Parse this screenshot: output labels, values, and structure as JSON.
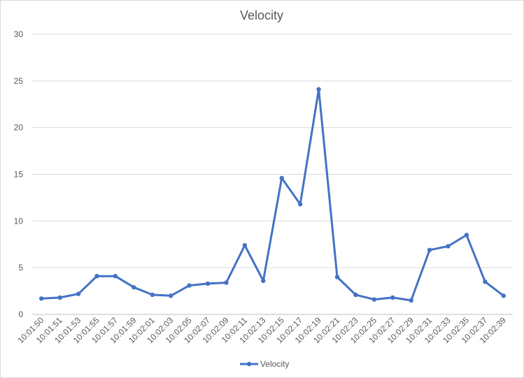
{
  "chart_data": {
    "type": "line",
    "title": "Velocity",
    "xlabel": "",
    "ylabel": "",
    "ylim": [
      0,
      30
    ],
    "yticks": [
      0,
      5,
      10,
      15,
      20,
      25,
      30
    ],
    "grid": true,
    "legend_position": "bottom",
    "categories": [
      "10:01:50",
      "10:01:51",
      "10:01:53",
      "10:01:55",
      "10:01:57",
      "10:01:59",
      "10:02:01",
      "10:02:03",
      "10:02:05",
      "10:02:07",
      "10:02:09",
      "10:02:11",
      "10:02:13",
      "10:02:15",
      "10:02:17",
      "10:02:19",
      "10:02:21",
      "10:02:23",
      "10:02:25",
      "10:02:27",
      "10:02:29",
      "10:02:31",
      "10:02:33",
      "10:02:35",
      "10:02:37",
      "10:02:39"
    ],
    "series": [
      {
        "name": "Velocity",
        "color": "#4472C4",
        "values": [
          1.7,
          1.8,
          2.2,
          4.1,
          4.1,
          2.9,
          2.1,
          2.0,
          3.1,
          3.3,
          3.4,
          7.4,
          3.6,
          14.6,
          11.8,
          24.1,
          4.0,
          2.1,
          1.6,
          1.8,
          1.5,
          6.9,
          7.3,
          8.5,
          3.5,
          2.0
        ]
      }
    ]
  }
}
